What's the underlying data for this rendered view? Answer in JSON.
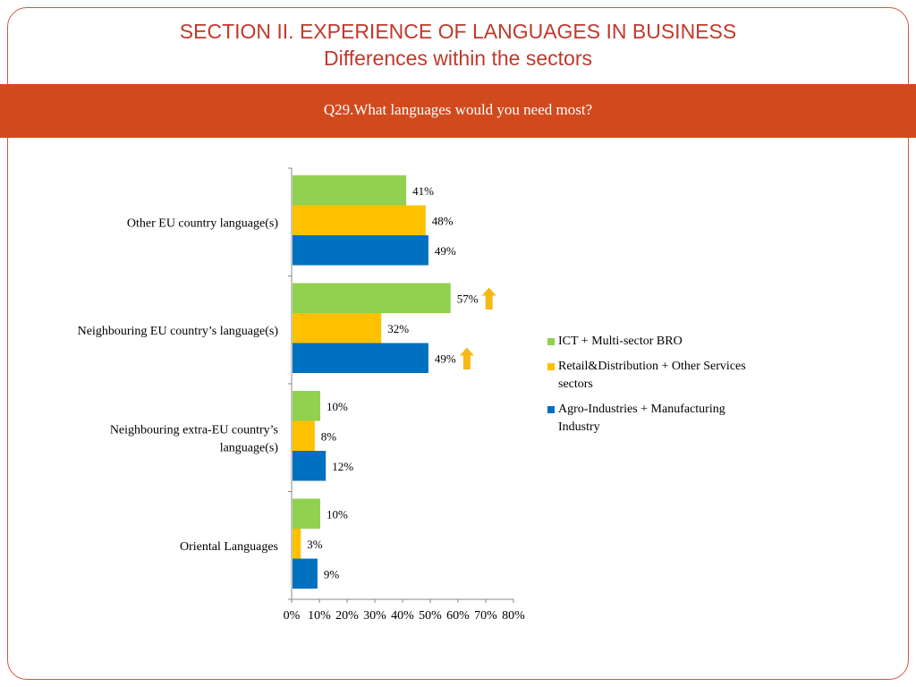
{
  "header": {
    "title": "SECTION II. EXPERIENCE OF LANGUAGES IN BUSINESS",
    "subtitle": "Differences within the sectors"
  },
  "question": "Q29.What languages would you need most?",
  "colors": {
    "accent": "#d14a1e",
    "title_red": "#c0392b",
    "green": "#92d050",
    "yellow": "#ffc000",
    "blue": "#0070c0",
    "arrow": "#f6b914"
  },
  "chart_data": {
    "type": "bar",
    "orientation": "horizontal",
    "categories": [
      "Other EU country language(s)",
      "Neighbouring EU country’s language(s)",
      "Neighbouring extra-EU country’s language(s)",
      "Oriental Languages"
    ],
    "category_lines": [
      [
        "Other EU country language(s)"
      ],
      [
        "Neighbouring EU country’s language(s)"
      ],
      [
        "Neighbouring extra-EU country’s",
        "language(s)"
      ],
      [
        "Oriental Languages"
      ]
    ],
    "series": [
      {
        "name": "ICT + Multi-sector BRO",
        "color": "#92d050",
        "values": [
          41,
          57,
          10,
          10
        ],
        "labels": [
          "41%",
          "57%",
          "10%",
          "10%"
        ]
      },
      {
        "name": "Retail&Distribution + Other Services sectors",
        "color": "#ffc000",
        "values": [
          48,
          32,
          8,
          3
        ],
        "labels": [
          "48%",
          "32%",
          "8%",
          "3%"
        ]
      },
      {
        "name": "Agro-Industries + Manufacturing Industry",
        "color": "#0070c0",
        "values": [
          49,
          49,
          12,
          9
        ],
        "labels": [
          "49%",
          "49%",
          "12%",
          "9%"
        ]
      }
    ],
    "xlim": [
      0,
      80
    ],
    "xticks": [
      "0%",
      "10%",
      "20%",
      "30%",
      "40%",
      "50%",
      "60%",
      "70%",
      "80%"
    ],
    "legend_position": "right",
    "annotations": [
      {
        "category": 1,
        "series": 0,
        "mark": "up-arrow"
      },
      {
        "category": 1,
        "series": 2,
        "mark": "up-arrow"
      }
    ]
  }
}
